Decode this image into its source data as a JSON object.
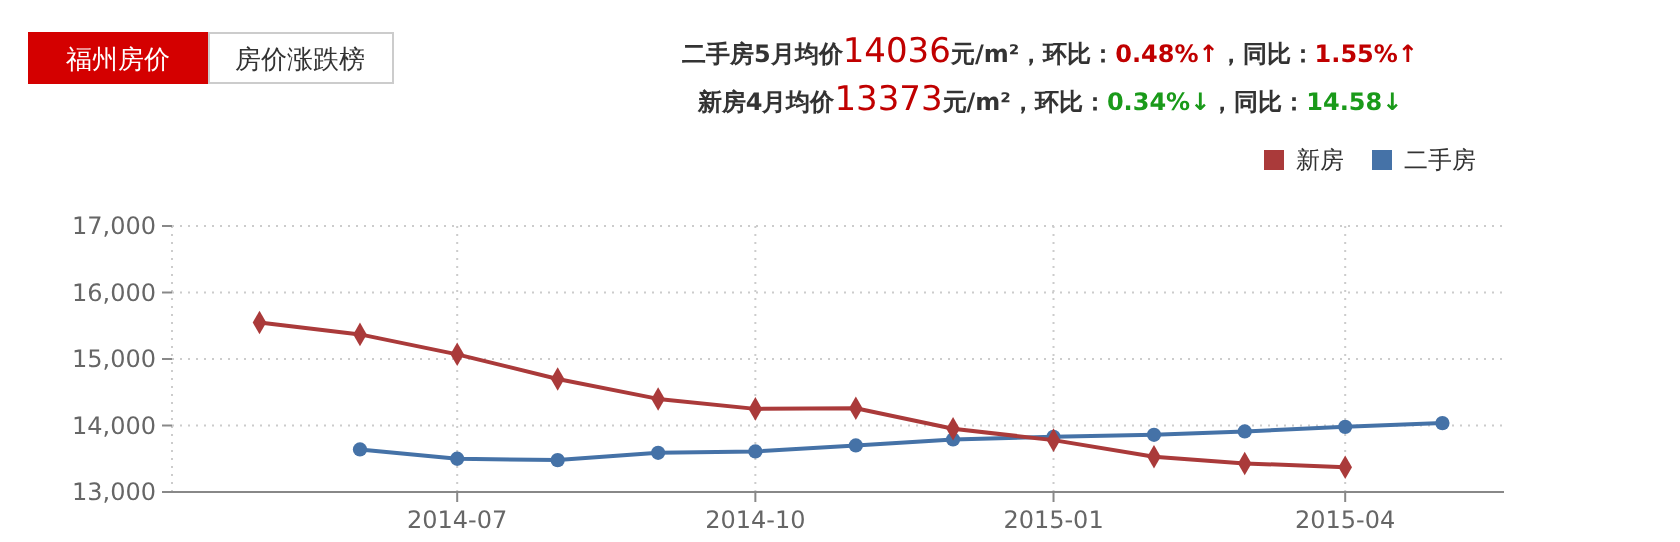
{
  "chart_data": {
    "type": "line",
    "annotations": [
      "福州房价",
      "房价涨跌榜",
      "二手房5月均价14036元/m²，环比：0.48%↑，同比：1.55%↑",
      "新房4月均价13373元/m²，环比：0.34%↓，同比：14.58↓"
    ],
    "x": [
      "2014-05",
      "2014-06",
      "2014-07",
      "2014-08",
      "2014-09",
      "2014-10",
      "2014-11",
      "2014-12",
      "2015-01",
      "2015-02",
      "2015-03",
      "2015-04",
      "2015-05"
    ],
    "series": [
      {
        "name": "新房",
        "color": "#aa3a3a",
        "marker": "diamond",
        "values": [
          15550,
          15370,
          15070,
          14700,
          14400,
          14250,
          14260,
          13950,
          13780,
          13530,
          13430,
          13373,
          null
        ]
      },
      {
        "name": "二手房",
        "color": "#4572a7",
        "marker": "circle",
        "values": [
          null,
          13640,
          13500,
          13480,
          13590,
          13610,
          13700,
          13790,
          13830,
          13860,
          13910,
          13980,
          14036
        ]
      }
    ],
    "xlim": [
      "2014-04-04",
      "2015-05-20"
    ],
    "xticks": [
      {
        "value": "2014-07",
        "label": "2014-07"
      },
      {
        "value": "2014-10",
        "label": "2014-10"
      },
      {
        "value": "2015-01",
        "label": "2015-01"
      },
      {
        "value": "2015-04",
        "label": "2015-04"
      }
    ],
    "ylim": [
      13000,
      17000
    ],
    "yticks": [
      {
        "value": 13000,
        "label": "13,000"
      },
      {
        "value": 14000,
        "label": "14,000"
      },
      {
        "value": 15000,
        "label": "15,000"
      },
      {
        "value": 16000,
        "label": "16,000"
      },
      {
        "value": 17000,
        "label": "17,000"
      }
    ],
    "grid": true,
    "legend": "top right"
  }
}
